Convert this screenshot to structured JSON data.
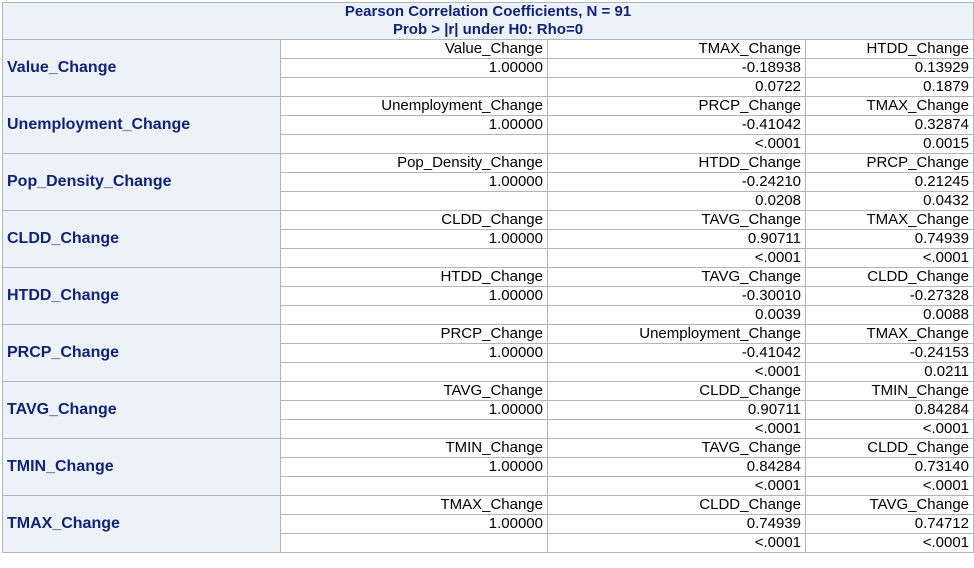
{
  "title": {
    "line1": "Pearson Correlation Coefficients, N = 91",
    "line2": "Prob > |r| under H0: Rho=0"
  },
  "rows": [
    {
      "variable": "Value_Change",
      "names": [
        "Value_Change",
        "TMAX_Change",
        "HTDD_Change"
      ],
      "r": [
        "1.00000",
        "-0.18938",
        "0.13929"
      ],
      "p": [
        "",
        "0.0722",
        "0.1879"
      ]
    },
    {
      "variable": "Unemployment_Change",
      "names": [
        "Unemployment_Change",
        "PRCP_Change",
        "TMAX_Change"
      ],
      "r": [
        "1.00000",
        "-0.41042",
        "0.32874"
      ],
      "p": [
        "",
        "<.0001",
        "0.0015"
      ]
    },
    {
      "variable": "Pop_Density_Change",
      "names": [
        "Pop_Density_Change",
        "HTDD_Change",
        "PRCP_Change"
      ],
      "r": [
        "1.00000",
        "-0.24210",
        "0.21245"
      ],
      "p": [
        "",
        "0.0208",
        "0.0432"
      ]
    },
    {
      "variable": "CLDD_Change",
      "names": [
        "CLDD_Change",
        "TAVG_Change",
        "TMAX_Change"
      ],
      "r": [
        "1.00000",
        "0.90711",
        "0.74939"
      ],
      "p": [
        "",
        "<.0001",
        "<.0001"
      ]
    },
    {
      "variable": "HTDD_Change",
      "names": [
        "HTDD_Change",
        "TAVG_Change",
        "CLDD_Change"
      ],
      "r": [
        "1.00000",
        "-0.30010",
        "-0.27328"
      ],
      "p": [
        "",
        "0.0039",
        "0.0088"
      ]
    },
    {
      "variable": "PRCP_Change",
      "names": [
        "PRCP_Change",
        "Unemployment_Change",
        "TMAX_Change"
      ],
      "r": [
        "1.00000",
        "-0.41042",
        "-0.24153"
      ],
      "p": [
        "",
        "<.0001",
        "0.0211"
      ]
    },
    {
      "variable": "TAVG_Change",
      "names": [
        "TAVG_Change",
        "CLDD_Change",
        "TMIN_Change"
      ],
      "r": [
        "1.00000",
        "0.90711",
        "0.84284"
      ],
      "p": [
        "",
        "<.0001",
        "<.0001"
      ]
    },
    {
      "variable": "TMIN_Change",
      "names": [
        "TMIN_Change",
        "TAVG_Change",
        "CLDD_Change"
      ],
      "r": [
        "1.00000",
        "0.84284",
        "0.73140"
      ],
      "p": [
        "",
        "<.0001",
        "<.0001"
      ]
    },
    {
      "variable": "TMAX_Change",
      "names": [
        "TMAX_Change",
        "CLDD_Change",
        "TAVG_Change"
      ],
      "r": [
        "1.00000",
        "0.74939",
        "0.74712"
      ],
      "p": [
        "",
        "<.0001",
        "<.0001"
      ]
    }
  ]
}
